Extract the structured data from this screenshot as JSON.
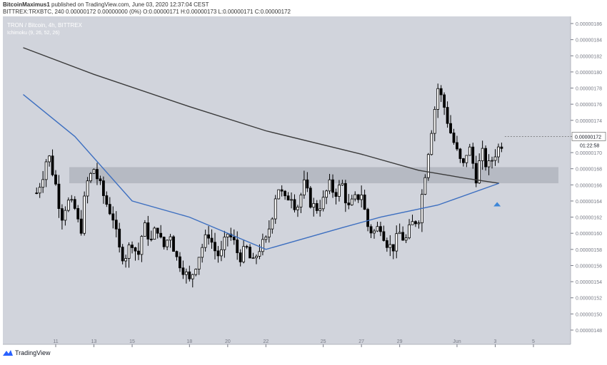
{
  "header": {
    "publisher": "BitcoinMaximus1",
    "published_text": " published on TradingView.com, June 03, 2020 12:37:04 CEST",
    "symbol_line": "BITTREX:TRXBTC, 240  0.00000172  0.00000000 (0%)  O:0.00000171  H:0.00000173  L:0.00000171  C:0.00000172"
  },
  "chart_title": "TRON / Bitcoin, 4h, BITTREX",
  "indicator_label": "Ichimoku (9, 26, 52, 26)",
  "footer": {
    "brand": "TradingView"
  },
  "colors": {
    "chart_bg": "#d1d4dc",
    "zone": "#b2b5be",
    "candle": "#000000",
    "ma_dark": "#3a3a3a",
    "ma_blue": "#3d6fc0",
    "price_label_bg": "#ffffff",
    "arrow": "#3d86d8"
  },
  "chart_data": {
    "type": "candlestick",
    "symbol": "TRXBTC",
    "exchange": "BITTREX",
    "interval": "4h",
    "ylim": [
      1.47e-06,
      1.87e-06
    ],
    "y_ticks": [
      "0.00000186",
      "0.00000184",
      "0.00000182",
      "0.00000180",
      "0.00000178",
      "0.00000176",
      "0.00000174",
      "0.00000172",
      "0.00000170",
      "0.00000168",
      "0.00000166",
      "0.00000164",
      "0.00000162",
      "0.00000160",
      "0.00000158",
      "0.00000156",
      "0.00000154",
      "0.00000152",
      "0.00000150",
      "0.00000148"
    ],
    "x_ticks": [
      {
        "label": "11",
        "day": 11
      },
      {
        "label": "13",
        "day": 13
      },
      {
        "label": "15",
        "day": 15
      },
      {
        "label": "18",
        "day": 18
      },
      {
        "label": "20",
        "day": 20
      },
      {
        "label": "22",
        "day": 22
      },
      {
        "label": "25",
        "day": 25
      },
      {
        "label": "27",
        "day": 27
      },
      {
        "label": "29",
        "day": 29
      },
      {
        "label": "Jun",
        "day": 32
      },
      {
        "label": "3",
        "day": 34
      },
      {
        "label": "5",
        "day": 36
      }
    ],
    "current_price": "0.00000172",
    "countdown": "01:22:58",
    "resistance_zone": [
      1.662e-06,
      1.682e-06
    ],
    "close_path": [
      [
        10.0,
        1.65e-06
      ],
      [
        10.3,
        1.67e-06
      ],
      [
        10.6,
        1.7e-06
      ],
      [
        11.0,
        1.66e-06
      ],
      [
        11.3,
        1.62e-06
      ],
      [
        11.6,
        1.64e-06
      ],
      [
        12.0,
        1.63e-06
      ],
      [
        12.3,
        1.6e-06
      ],
      [
        12.6,
        1.66e-06
      ],
      [
        13.0,
        1.68e-06
      ],
      [
        13.3,
        1.66e-06
      ],
      [
        13.6,
        1.64e-06
      ],
      [
        14.0,
        1.62e-06
      ],
      [
        14.3,
        1.58e-06
      ],
      [
        14.6,
        1.57e-06
      ],
      [
        15.0,
        1.59e-06
      ],
      [
        15.3,
        1.57e-06
      ],
      [
        15.6,
        1.61e-06
      ],
      [
        16.0,
        1.59e-06
      ],
      [
        16.3,
        1.61e-06
      ],
      [
        16.6,
        1.58e-06
      ],
      [
        17.0,
        1.6e-06
      ],
      [
        17.3,
        1.57e-06
      ],
      [
        17.6,
        1.56e-06
      ],
      [
        18.0,
        1.54e-06
      ],
      [
        18.3,
        1.56e-06
      ],
      [
        18.6,
        1.58e-06
      ],
      [
        19.0,
        1.6e-06
      ],
      [
        19.3,
        1.58e-06
      ],
      [
        19.6,
        1.57e-06
      ],
      [
        20.0,
        1.6e-06
      ],
      [
        20.3,
        1.59e-06
      ],
      [
        20.6,
        1.57e-06
      ],
      [
        21.0,
        1.58e-06
      ],
      [
        21.3,
        1.56e-06
      ],
      [
        21.6,
        1.58e-06
      ],
      [
        22.0,
        1.59e-06
      ],
      [
        22.3,
        1.62e-06
      ],
      [
        22.6,
        1.66e-06
      ],
      [
        23.0,
        1.64e-06
      ],
      [
        23.3,
        1.65e-06
      ],
      [
        23.6,
        1.63e-06
      ],
      [
        24.0,
        1.66e-06
      ],
      [
        24.3,
        1.64e-06
      ],
      [
        24.6,
        1.63e-06
      ],
      [
        25.0,
        1.64e-06
      ],
      [
        25.3,
        1.66e-06
      ],
      [
        25.6,
        1.65e-06
      ],
      [
        26.0,
        1.66e-06
      ],
      [
        26.3,
        1.63e-06
      ],
      [
        26.6,
        1.64e-06
      ],
      [
        27.0,
        1.65e-06
      ],
      [
        27.3,
        1.61e-06
      ],
      [
        27.6,
        1.6e-06
      ],
      [
        28.0,
        1.61e-06
      ],
      [
        28.3,
        1.59e-06
      ],
      [
        28.6,
        1.58e-06
      ],
      [
        29.0,
        1.6e-06
      ],
      [
        29.3,
        1.59e-06
      ],
      [
        29.6,
        1.61e-06
      ],
      [
        30.0,
        1.62e-06
      ],
      [
        30.3,
        1.67e-06
      ],
      [
        30.6,
        1.72e-06
      ],
      [
        31.0,
        1.78e-06
      ],
      [
        31.3,
        1.76e-06
      ],
      [
        31.6,
        1.73e-06
      ],
      [
        32.0,
        1.7e-06
      ],
      [
        32.3,
        1.68e-06
      ],
      [
        32.6,
        1.71e-06
      ],
      [
        33.0,
        1.67e-06
      ],
      [
        33.3,
        1.7e-06
      ],
      [
        33.6,
        1.68e-06
      ],
      [
        34.0,
        1.7e-06
      ],
      [
        34.3,
        1.71e-06
      ],
      [
        34.5,
        1.72e-06
      ]
    ],
    "ma_200_dark": [
      [
        9.3,
        1.83e-06
      ],
      [
        13,
        1.797e-06
      ],
      [
        18,
        1.757e-06
      ],
      [
        22,
        1.727e-06
      ],
      [
        27,
        1.698e-06
      ],
      [
        30,
        1.678e-06
      ],
      [
        32.5,
        1.668e-06
      ],
      [
        34.2,
        1.662e-06
      ]
    ],
    "ma_blue": [
      [
        9.3,
        1.772e-06
      ],
      [
        12,
        1.72e-06
      ],
      [
        15,
        1.64e-06
      ],
      [
        18,
        1.62e-06
      ],
      [
        22,
        1.58e-06
      ],
      [
        26,
        1.607e-06
      ],
      [
        28,
        1.62e-06
      ],
      [
        31,
        1.635e-06
      ],
      [
        34.2,
        1.662e-06
      ]
    ],
    "annotation": {
      "type": "arrow-up",
      "day": 34.1,
      "value": 1.636e-06
    }
  }
}
